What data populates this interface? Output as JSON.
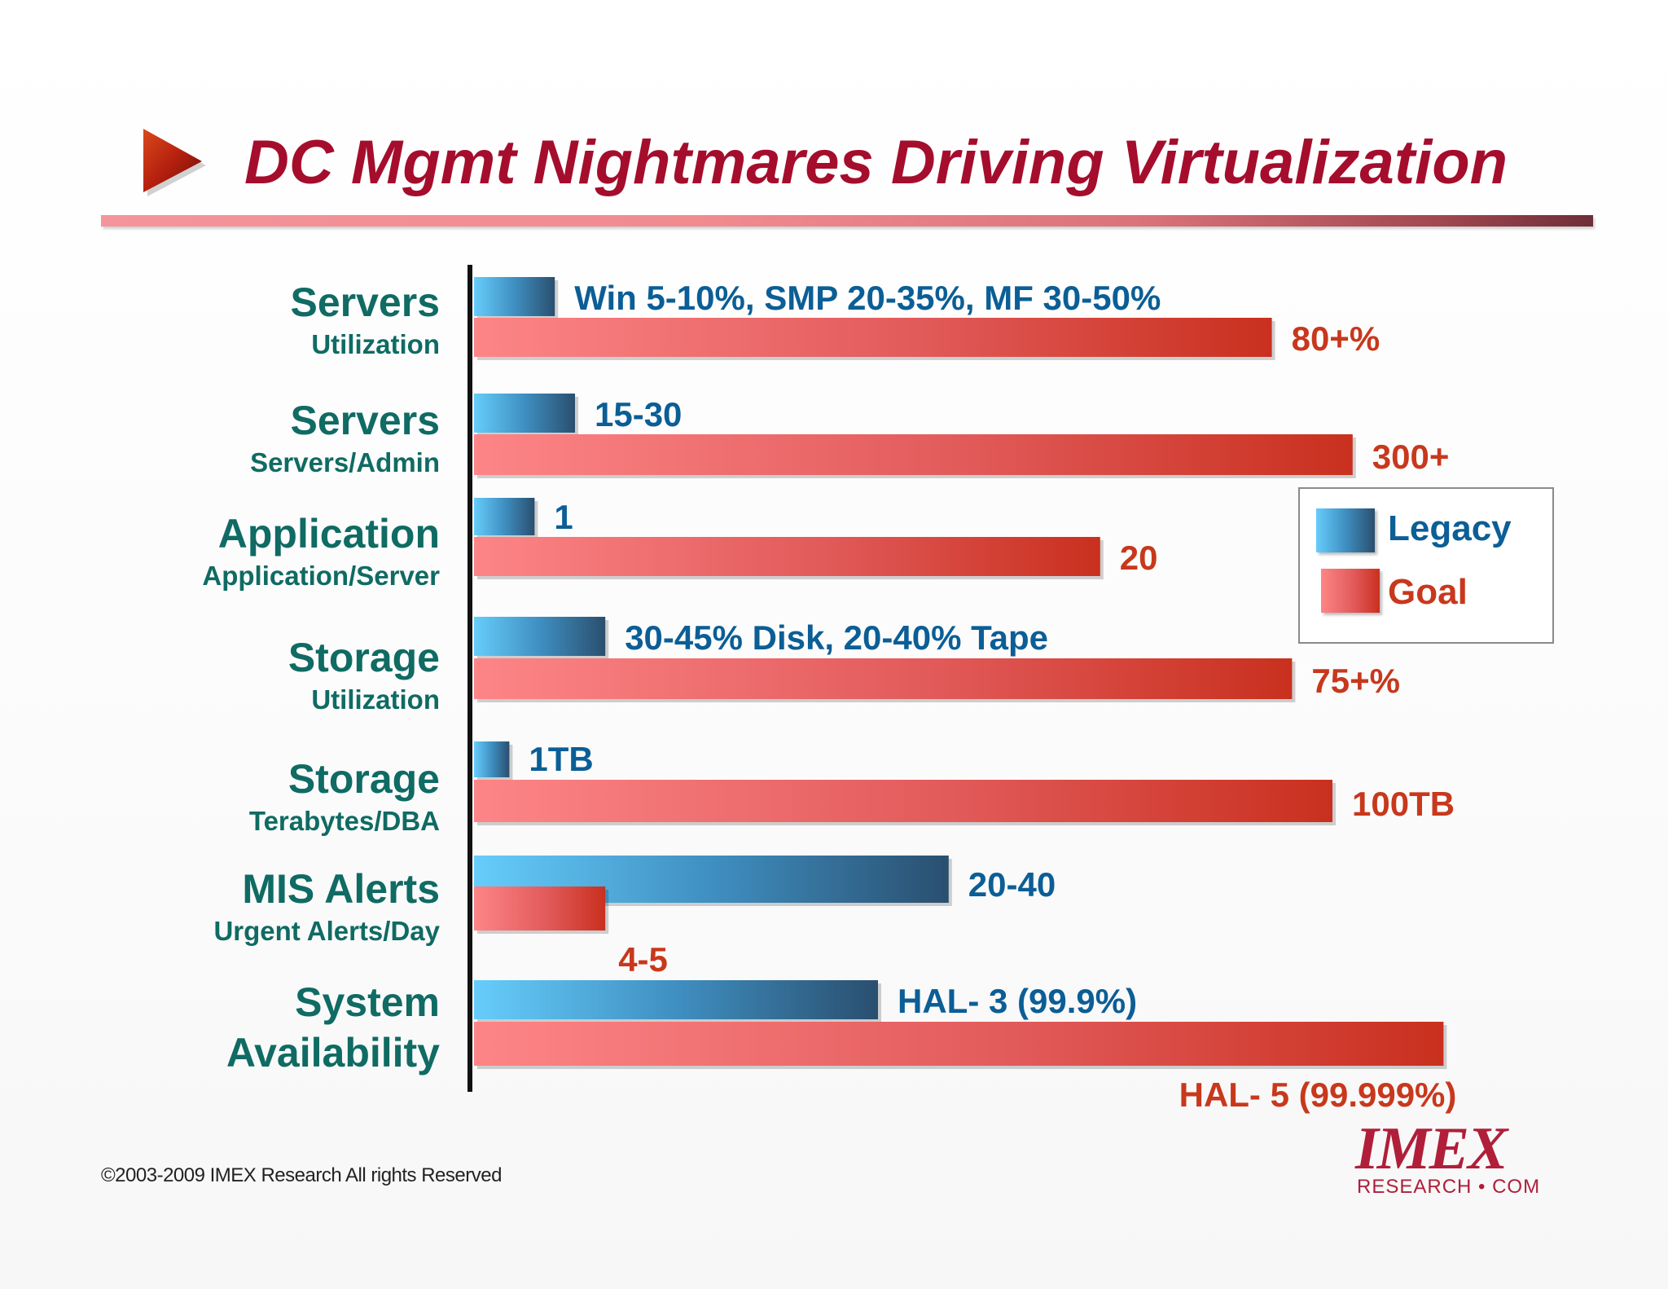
{
  "title": "DC Mgmt Nightmares Driving Virtualization",
  "colors": {
    "title": "#a50d2d",
    "category_text": "#0f6b63",
    "legacy_bar": "#3f8fc1",
    "legacy_text": "#0b5e96",
    "goal_bar": "#e25b5b",
    "goal_text": "#c8381c"
  },
  "chart_data": {
    "type": "bar",
    "orientation": "horizontal",
    "series_names": [
      "Legacy",
      "Goal"
    ],
    "legend_position": "right",
    "categories": [
      {
        "name": "Servers",
        "subtitle": "Utilization",
        "legacy_label": "Win 5-10%, SMP 20-35%, MF 30-50%",
        "goal_label": "80+%",
        "legacy_fill": 0.08,
        "goal_fill": 0.79
      },
      {
        "name": "Servers",
        "subtitle": "Servers/Admin",
        "legacy_label": "15-30",
        "goal_label": "300+",
        "legacy_fill": 0.1,
        "goal_fill": 0.87
      },
      {
        "name": "Application",
        "subtitle": "Application/Server",
        "legacy_label": "1",
        "goal_label": "20",
        "legacy_fill": 0.06,
        "goal_fill": 0.62
      },
      {
        "name": "Storage",
        "subtitle": "Utilization",
        "legacy_label": "30-45% Disk, 20-40% Tape",
        "goal_label": "75+%",
        "legacy_fill": 0.13,
        "goal_fill": 0.81
      },
      {
        "name": "Storage",
        "subtitle": "Terabytes/DBA",
        "legacy_label": "1TB",
        "goal_label": "100TB",
        "legacy_fill": 0.035,
        "goal_fill": 0.85
      },
      {
        "name": "MIS Alerts",
        "subtitle": "Urgent Alerts/Day",
        "legacy_label": "20-40",
        "goal_label": "4-5",
        "legacy_fill": 0.47,
        "goal_fill": 0.13
      },
      {
        "name": "System",
        "subtitle": "Availability",
        "legacy_label": "HAL- 3 (99.9%)",
        "goal_label": "HAL- 5 (99.999%)",
        "legacy_fill": 0.4,
        "goal_fill": 0.96
      }
    ]
  },
  "legend": {
    "legacy": "Legacy",
    "goal": "Goal"
  },
  "footer": {
    "copyright": "©2003-2009  IMEX Research All rights Reserved"
  },
  "logo": {
    "mark": "IMEX",
    "sub": "RESEARCH • COM"
  }
}
